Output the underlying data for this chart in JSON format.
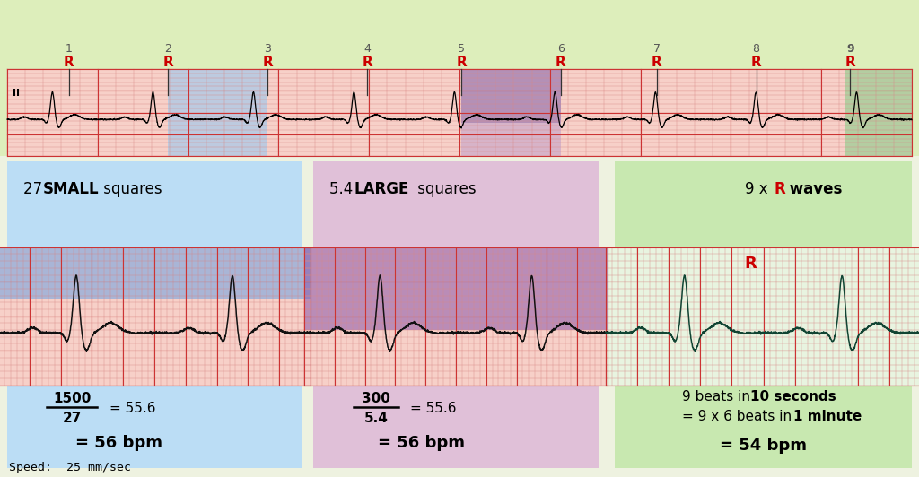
{
  "bg_color": "#eef2e0",
  "ecg_paper_bg": "#f7d0c8",
  "ecg_paper_bg_green": "#e8f4e0",
  "light_green_header": "#ddeebb",
  "blue_panel": "#bbddf5",
  "pink_panel": "#e0c0d8",
  "green_panel": "#c8e8b0",
  "blue_highlight": "#a8c8e8",
  "pink_highlight_top": "#a07898",
  "pink_highlight_bot": "#c8a0bc",
  "green_strip_box": "#a8d890",
  "red_color": "#cc0000",
  "dark_red": "#aa0000",
  "r_positions": [
    0.068,
    0.178,
    0.288,
    0.398,
    0.502,
    0.612,
    0.718,
    0.828,
    0.932
  ],
  "r_labels": [
    "1",
    "2",
    "3",
    "4",
    "5",
    "6",
    "7",
    "8",
    "9"
  ],
  "speed_label": "Speed:  25 mm/sec"
}
